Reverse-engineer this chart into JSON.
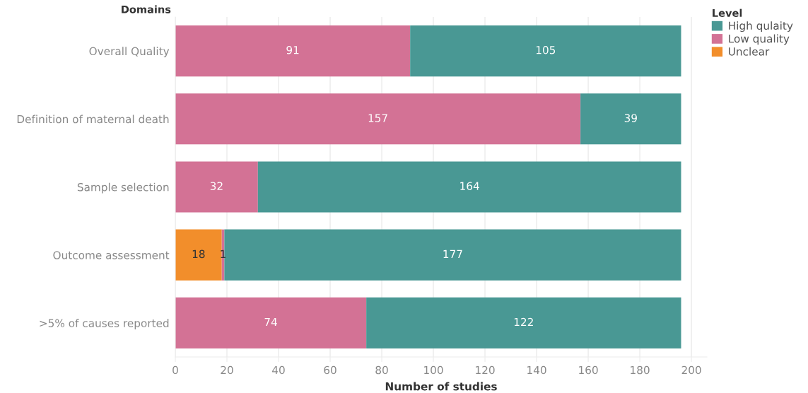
{
  "chart_data": {
    "type": "bar",
    "orientation": "horizontal",
    "stacked": true,
    "xlabel": "Number of studies",
    "ylabel": "Domains",
    "legend_title": "Level",
    "categories": [
      "Overall Quality",
      "Definition of maternal death",
      "Sample selection",
      "Outcome assessment",
      ">5% of causes reported"
    ],
    "series": [
      {
        "name": "Unclear",
        "color": "#f28e2b",
        "values": [
          null,
          null,
          null,
          18,
          null
        ]
      },
      {
        "name": "Low quality",
        "color": "#d37295",
        "values": [
          91,
          157,
          32,
          1,
          74
        ]
      },
      {
        "name": "High qulaity",
        "color": "#499894",
        "values": [
          105,
          39,
          164,
          177,
          122
        ]
      }
    ],
    "xlim": [
      0,
      206
    ],
    "xticks": [
      0,
      20,
      40,
      60,
      80,
      100,
      120,
      140,
      160,
      180,
      200
    ],
    "grid": "x",
    "legend": "top right",
    "data_labels": true
  }
}
